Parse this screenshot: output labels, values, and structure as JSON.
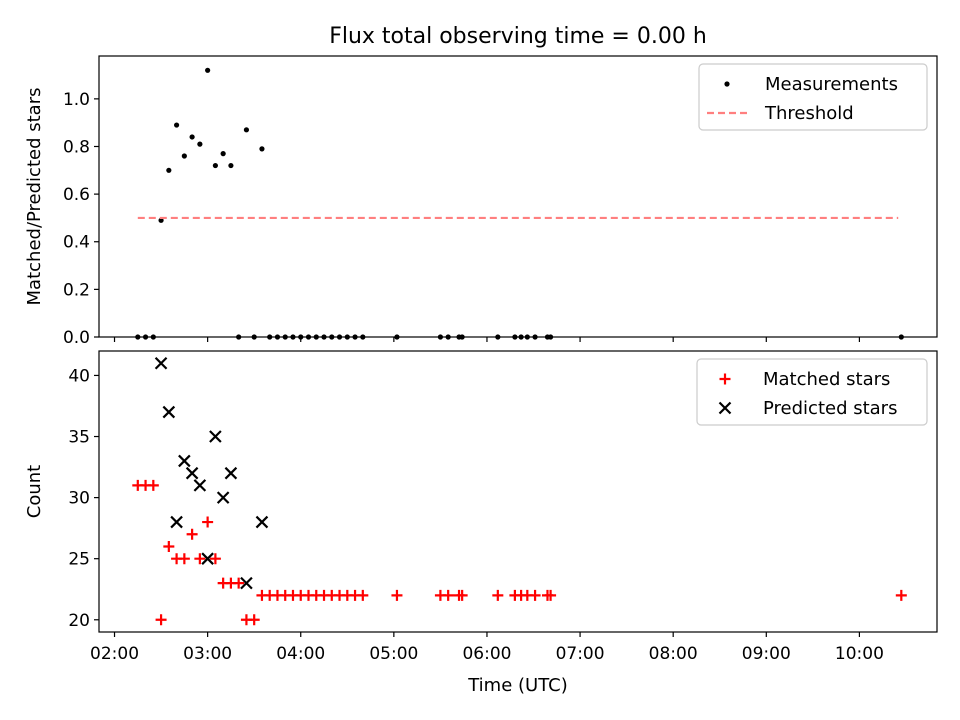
{
  "figure": {
    "title": "Flux total observing time = 0.00 h",
    "xlabel": "Time (UTC)"
  },
  "chart_data": [
    {
      "type": "scatter",
      "ylabel": "Matched/Predicted stars",
      "xlim": [
        "01:50",
        "10:50"
      ],
      "ylim": [
        0,
        1.18
      ],
      "yticks": [
        0.0,
        0.2,
        0.4,
        0.6,
        0.8,
        1.0
      ],
      "legend_position": "top-right",
      "series": [
        {
          "name": "Measurements",
          "marker": "dot",
          "color": "#000000",
          "points": [
            [
              "02:15",
              0.0
            ],
            [
              "02:20",
              0.0
            ],
            [
              "02:25",
              0.0
            ],
            [
              "02:30",
              0.49
            ],
            [
              "02:35",
              0.7
            ],
            [
              "02:40",
              0.89
            ],
            [
              "02:45",
              0.76
            ],
            [
              "02:50",
              0.84
            ],
            [
              "02:55",
              0.81
            ],
            [
              "03:00",
              1.12
            ],
            [
              "03:05",
              0.72
            ],
            [
              "03:10",
              0.77
            ],
            [
              "03:15",
              0.72
            ],
            [
              "03:20",
              0.0
            ],
            [
              "03:25",
              0.87
            ],
            [
              "03:30",
              0.0
            ],
            [
              "03:35",
              0.79
            ],
            [
              "03:40",
              0.0
            ],
            [
              "03:45",
              0.0
            ],
            [
              "03:50",
              0.0
            ],
            [
              "03:55",
              0.0
            ],
            [
              "04:00",
              0.0
            ],
            [
              "04:05",
              0.0
            ],
            [
              "04:10",
              0.0
            ],
            [
              "04:15",
              0.0
            ],
            [
              "04:20",
              0.0
            ],
            [
              "04:25",
              0.0
            ],
            [
              "04:30",
              0.0
            ],
            [
              "04:35",
              0.0
            ],
            [
              "04:40",
              0.0
            ],
            [
              "05:02",
              0.0
            ],
            [
              "05:30",
              0.0
            ],
            [
              "05:35",
              0.0
            ],
            [
              "05:42",
              0.0
            ],
            [
              "05:44",
              0.0
            ],
            [
              "06:07",
              0.0
            ],
            [
              "06:18",
              0.0
            ],
            [
              "06:22",
              0.0
            ],
            [
              "06:26",
              0.0
            ],
            [
              "06:31",
              0.0
            ],
            [
              "06:39",
              0.0
            ],
            [
              "06:41",
              0.0
            ],
            [
              "10:27",
              0.0
            ]
          ]
        },
        {
          "name": "Threshold",
          "line": "dashed",
          "color": "#ff7f7f",
          "points": [
            [
              "02:15",
              0.5
            ],
            [
              "10:25",
              0.5
            ]
          ]
        }
      ]
    },
    {
      "type": "scatter",
      "ylabel": "Count",
      "xlim": [
        "01:50",
        "10:50"
      ],
      "ylim": [
        19,
        42
      ],
      "yticks": [
        20,
        25,
        30,
        35,
        40
      ],
      "xticks": [
        "02:00",
        "03:00",
        "04:00",
        "05:00",
        "06:00",
        "07:00",
        "08:00",
        "09:00",
        "10:00"
      ],
      "legend_position": "top-right",
      "series": [
        {
          "name": "Matched stars",
          "marker": "plus",
          "color": "#ff0000",
          "points": [
            [
              "02:15",
              31
            ],
            [
              "02:20",
              31
            ],
            [
              "02:25",
              31
            ],
            [
              "02:30",
              20
            ],
            [
              "02:35",
              26
            ],
            [
              "02:40",
              25
            ],
            [
              "02:45",
              25
            ],
            [
              "02:50",
              27
            ],
            [
              "02:55",
              25
            ],
            [
              "03:00",
              28
            ],
            [
              "03:05",
              25
            ],
            [
              "03:10",
              23
            ],
            [
              "03:15",
              23
            ],
            [
              "03:20",
              23
            ],
            [
              "03:25",
              20
            ],
            [
              "03:30",
              20
            ],
            [
              "03:35",
              22
            ],
            [
              "03:40",
              22
            ],
            [
              "03:45",
              22
            ],
            [
              "03:50",
              22
            ],
            [
              "03:55",
              22
            ],
            [
              "04:00",
              22
            ],
            [
              "04:05",
              22
            ],
            [
              "04:10",
              22
            ],
            [
              "04:15",
              22
            ],
            [
              "04:20",
              22
            ],
            [
              "04:25",
              22
            ],
            [
              "04:30",
              22
            ],
            [
              "04:35",
              22
            ],
            [
              "04:40",
              22
            ],
            [
              "05:02",
              22
            ],
            [
              "05:30",
              22
            ],
            [
              "05:35",
              22
            ],
            [
              "05:42",
              22
            ],
            [
              "05:44",
              22
            ],
            [
              "06:07",
              22
            ],
            [
              "06:18",
              22
            ],
            [
              "06:22",
              22
            ],
            [
              "06:26",
              22
            ],
            [
              "06:31",
              22
            ],
            [
              "06:39",
              22
            ],
            [
              "06:41",
              22
            ],
            [
              "10:27",
              22
            ]
          ]
        },
        {
          "name": "Predicted stars",
          "marker": "x",
          "color": "#000000",
          "points": [
            [
              "02:30",
              41
            ],
            [
              "02:35",
              37
            ],
            [
              "02:40",
              28
            ],
            [
              "02:45",
              33
            ],
            [
              "02:50",
              32
            ],
            [
              "02:55",
              31
            ],
            [
              "03:00",
              25
            ],
            [
              "03:05",
              35
            ],
            [
              "03:10",
              30
            ],
            [
              "03:15",
              32
            ],
            [
              "03:25",
              23
            ],
            [
              "03:35",
              28
            ]
          ]
        }
      ]
    }
  ]
}
